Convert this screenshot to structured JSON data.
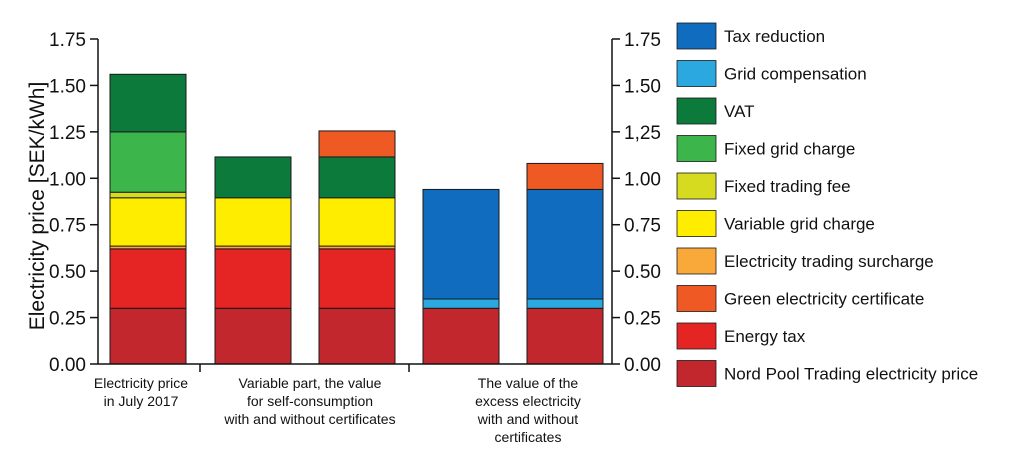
{
  "chart_data": {
    "type": "bar",
    "stacked": true,
    "ylabel": "Electricity price [SEK/kWh]",
    "ylim": [
      0,
      1.75
    ],
    "yticks_left": [
      "0.00",
      "0.25",
      "0.50",
      "0.75",
      "1.00",
      "1.25",
      "1.50",
      "1.75"
    ],
    "yticks_right": [
      "0.00",
      "0.25",
      "0.50",
      "0.75",
      "1.00",
      "1,25",
      "1.50",
      "1.75"
    ],
    "groups": [
      {
        "label": [
          "Electricity price",
          "in July 2017"
        ]
      },
      {
        "label": [
          "Variable part, the value",
          "for self-consumption",
          "with and without certificates"
        ]
      },
      {
        "label": [
          "The value of the",
          "excess electricity",
          "with and without",
          "certificates"
        ]
      }
    ],
    "bars": [
      {
        "group": 0,
        "segments": [
          {
            "series": "Nord Pool Trading electricity price",
            "value": 0.3
          },
          {
            "series": "Energy tax",
            "value": 0.32
          },
          {
            "series": "Electricity trading surcharge",
            "value": 0.015
          },
          {
            "series": "Variable grid charge",
            "value": 0.26
          },
          {
            "series": "Fixed trading fee",
            "value": 0.03
          },
          {
            "series": "Fixed grid charge",
            "value": 0.325
          },
          {
            "series": "VAT",
            "value": 0.31
          }
        ]
      },
      {
        "group": 1,
        "segments": [
          {
            "series": "Nord Pool Trading electricity price",
            "value": 0.3
          },
          {
            "series": "Energy tax",
            "value": 0.32
          },
          {
            "series": "Electricity trading surcharge",
            "value": 0.015
          },
          {
            "series": "Variable grid charge",
            "value": 0.26
          },
          {
            "series": "VAT",
            "value": 0.22
          }
        ]
      },
      {
        "group": 1,
        "segments": [
          {
            "series": "Nord Pool Trading electricity price",
            "value": 0.3
          },
          {
            "series": "Energy tax",
            "value": 0.32
          },
          {
            "series": "Electricity trading surcharge",
            "value": 0.015
          },
          {
            "series": "Variable grid charge",
            "value": 0.26
          },
          {
            "series": "VAT",
            "value": 0.22
          },
          {
            "series": "Green electricity certificate",
            "value": 0.14
          }
        ]
      },
      {
        "group": 2,
        "segments": [
          {
            "series": "Nord Pool Trading electricity price",
            "value": 0.3
          },
          {
            "series": "Grid compensation",
            "value": 0.05
          },
          {
            "series": "Tax reduction",
            "value": 0.59
          }
        ]
      },
      {
        "group": 2,
        "segments": [
          {
            "series": "Nord Pool Trading electricity price",
            "value": 0.3
          },
          {
            "series": "Grid compensation",
            "value": 0.05
          },
          {
            "series": "Tax reduction",
            "value": 0.59
          },
          {
            "series": "Green electricity certificate",
            "value": 0.14
          }
        ]
      }
    ],
    "legend": {
      "placement": "right",
      "items": [
        {
          "name": "Tax reduction",
          "color": "#0F6CBF"
        },
        {
          "name": "Grid compensation",
          "color": "#2BA8E0"
        },
        {
          "name": "VAT",
          "color": "#0B7A3B"
        },
        {
          "name": "Fixed grid charge",
          "color": "#3CB54A"
        },
        {
          "name": "Fixed trading fee",
          "color": "#D6DB1F"
        },
        {
          "name": "Variable grid charge",
          "color": "#FFED00"
        },
        {
          "name": "Electricity trading surcharge",
          "color": "#F9A93A"
        },
        {
          "name": "Green electricity certificate",
          "color": "#EF5A24"
        },
        {
          "name": "Energy tax",
          "color": "#E52424"
        },
        {
          "name": "Nord Pool Trading electricity price",
          "color": "#C1272D"
        }
      ]
    }
  }
}
